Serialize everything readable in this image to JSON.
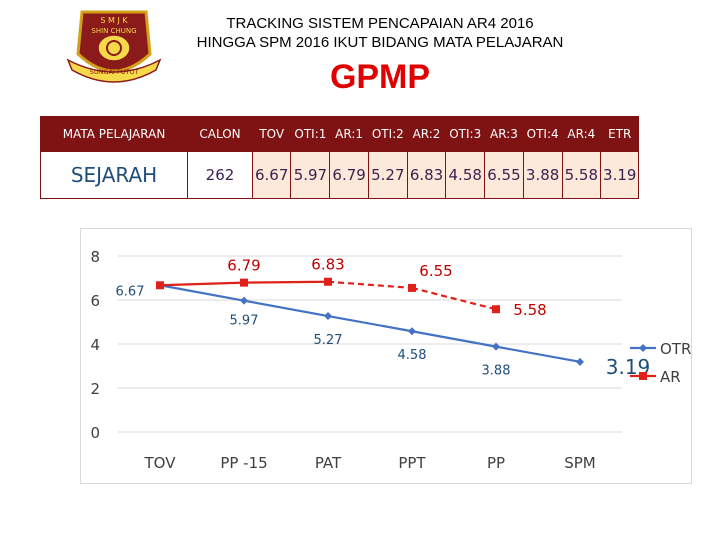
{
  "header": {
    "title_line1": "TRACKING SISTEM PENCAPAIAN AR4 2016",
    "title_line2": "HINGGA SPM 2016 IKUT BIDANG MATA PELAJARAN",
    "subtitle": "GPMP",
    "logo_top_text": "S M J K",
    "logo_name_text": "SHIN CHUNG",
    "logo_banner_text": "SUNGAI PUTUT"
  },
  "table": {
    "headers": [
      "MATA PELAJARAN",
      "CALON",
      "TOV",
      "OTI:1",
      "AR:1",
      "OTI:2",
      "AR:2",
      "OTI:3",
      "AR:3",
      "OTI:4",
      "AR:4",
      "ETR"
    ],
    "subject": "SEJARAH",
    "calon": "262",
    "values": [
      "6.67",
      "5.97",
      "6.79",
      "5.27",
      "6.83",
      "4.58",
      "6.55",
      "3.88",
      "5.58",
      "3.19"
    ]
  },
  "chart_data": {
    "type": "line",
    "categories": [
      "TOV",
      "PP -15",
      "PAT",
      "PPT",
      "PP",
      "SPM"
    ],
    "ylim": [
      0,
      8
    ],
    "yticks": [
      0,
      2,
      4,
      6,
      8
    ],
    "legend_position": "right",
    "series": [
      {
        "name": "OTR",
        "color": "#4472c4",
        "marker": "diamond",
        "values": [
          6.67,
          5.97,
          5.27,
          4.58,
          3.88,
          3.19
        ],
        "labels": [
          "6.67",
          "5.97",
          "5.27",
          "4.58",
          "3.88",
          "3.19"
        ]
      },
      {
        "name": "AR",
        "color": "#e0201b",
        "marker": "square",
        "values": [
          6.67,
          6.79,
          6.83,
          6.55,
          5.58,
          null
        ],
        "labels": [
          "",
          "6.79",
          "6.83",
          "6.55",
          "5.58",
          ""
        ]
      }
    ]
  }
}
